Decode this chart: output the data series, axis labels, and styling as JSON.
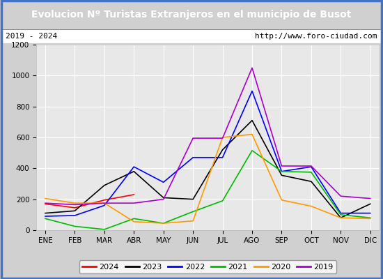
{
  "title": "Evolucion Nº Turistas Extranjeros en el municipio de Busot",
  "subtitle_left": "2019 - 2024",
  "subtitle_right": "http://www.foro-ciudad.com",
  "months": [
    "ENE",
    "FEB",
    "MAR",
    "ABR",
    "MAY",
    "JUN",
    "JUL",
    "AGO",
    "SEP",
    "OCT",
    "NOV",
    "DIC"
  ],
  "ylim": [
    0,
    1200
  ],
  "yticks": [
    0,
    200,
    400,
    600,
    800,
    1000,
    1200
  ],
  "series": {
    "2024": {
      "color": "#ff0000",
      "values": [
        170,
        145,
        195,
        230,
        null,
        null,
        null,
        null,
        null,
        null,
        null,
        null
      ]
    },
    "2023": {
      "color": "#000000",
      "values": [
        110,
        125,
        290,
        380,
        210,
        200,
        520,
        710,
        355,
        315,
        80,
        170
      ]
    },
    "2022": {
      "color": "#0000ff",
      "values": [
        90,
        95,
        160,
        410,
        310,
        470,
        470,
        900,
        380,
        410,
        110,
        110
      ]
    },
    "2021": {
      "color": "#00bb00",
      "values": [
        75,
        25,
        5,
        75,
        45,
        120,
        190,
        515,
        380,
        375,
        100,
        80
      ]
    },
    "2020": {
      "color": "#ff9900",
      "values": [
        205,
        175,
        175,
        55,
        45,
        60,
        600,
        620,
        195,
        155,
        80,
        75
      ]
    },
    "2019": {
      "color": "#aa00cc",
      "values": [
        175,
        165,
        175,
        175,
        200,
        595,
        595,
        1050,
        415,
        415,
        220,
        205
      ]
    }
  },
  "legend_order": [
    "2024",
    "2023",
    "2022",
    "2021",
    "2020",
    "2019"
  ],
  "title_bg_color": "#4472c4",
  "title_color": "#ffffff",
  "plot_bg_color": "#e8e8e8",
  "border_color": "#4472c4",
  "grid_color": "#ffffff",
  "outer_bg": "#d0d0d0"
}
